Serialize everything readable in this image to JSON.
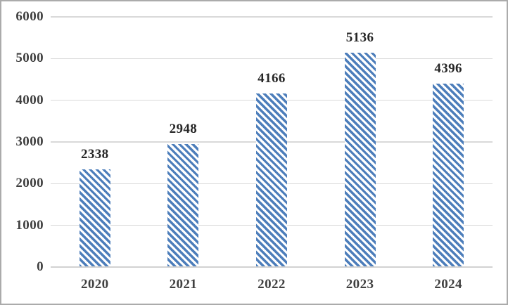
{
  "chart_data": {
    "type": "bar",
    "title": "",
    "categories": [
      "2020",
      "2021",
      "2022",
      "2023",
      "2024"
    ],
    "values": [
      2338,
      2948,
      4166,
      5136,
      4396
    ],
    "data_labels": [
      "2338",
      "2948",
      "4166",
      "5136",
      "4396"
    ],
    "xlabel": "",
    "ylabel": "",
    "ylim": [
      0,
      6000
    ],
    "yticks": [
      0,
      1000,
      2000,
      3000,
      4000,
      5000,
      6000
    ],
    "grid": true,
    "legend": false,
    "bar_style": "diagonal-stripe-hatch",
    "colors": {
      "bar_stripe": "#4d7ebb",
      "bar_bg": "#ffffff",
      "gridline": "#d9d9d9",
      "axis_line": "#d2d2d2",
      "axis_text": "#404040",
      "label_text": "#262626",
      "frame_border": "#ababab",
      "background": "#ffffff"
    }
  }
}
